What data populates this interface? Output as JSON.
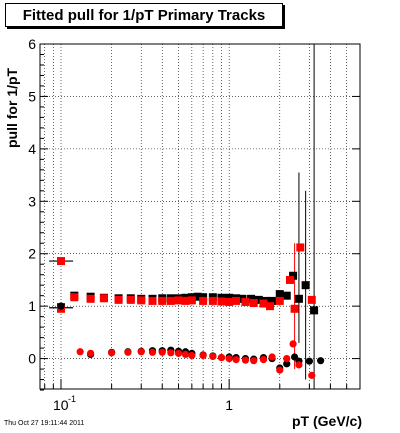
{
  "title": "Fitted pull for 1/pT  Primary Tracks",
  "timestamp": "Thu Oct 27 19:11:44 2011",
  "chart_data": {
    "type": "scatter",
    "title": "Fitted pull for 1/pT  Primary Tracks",
    "xlabel": "pT (GeV/c)",
    "ylabel": "pull for 1/pT",
    "x_scale": "log",
    "xlim": [
      0.075,
      6.0
    ],
    "ylim": [
      -0.58,
      6.0
    ],
    "x_tick_labels": [
      "10^-1",
      "1"
    ],
    "y_ticks": [
      0,
      1,
      2,
      3,
      4,
      5,
      6
    ],
    "grid": true,
    "colors": {
      "black": "#000000",
      "red": "#ff0000"
    },
    "series": [
      {
        "marker": "square",
        "color": "#000000",
        "points": [
          [
            0.1,
            0.98
          ],
          [
            0.12,
            1.2
          ],
          [
            0.15,
            1.18
          ],
          [
            0.18,
            1.16
          ],
          [
            0.22,
            1.15
          ],
          [
            0.26,
            1.15
          ],
          [
            0.3,
            1.14
          ],
          [
            0.35,
            1.14
          ],
          [
            0.4,
            1.15
          ],
          [
            0.45,
            1.15
          ],
          [
            0.5,
            1.15
          ],
          [
            0.55,
            1.16
          ],
          [
            0.6,
            1.17
          ],
          [
            0.65,
            1.18
          ],
          [
            0.7,
            1.17
          ],
          [
            0.8,
            1.17
          ],
          [
            0.9,
            1.16
          ],
          [
            1.0,
            1.16
          ],
          [
            1.1,
            1.15
          ],
          [
            1.2,
            1.14
          ],
          [
            1.35,
            1.14
          ],
          [
            1.5,
            1.12
          ],
          [
            1.65,
            1.1
          ],
          [
            1.8,
            1.1
          ],
          [
            2.0,
            1.23
          ],
          [
            2.2,
            1.2
          ],
          [
            2.4,
            1.58
          ],
          [
            2.6,
            1.14
          ],
          [
            2.85,
            1.4
          ],
          [
            3.2,
            0.92
          ]
        ]
      },
      {
        "marker": "square",
        "color": "#ff0000",
        "points": [
          [
            0.1,
            1.86
          ],
          [
            0.1,
            0.95
          ],
          [
            0.12,
            1.17
          ],
          [
            0.15,
            1.14
          ],
          [
            0.18,
            1.15
          ],
          [
            0.22,
            1.12
          ],
          [
            0.26,
            1.12
          ],
          [
            0.3,
            1.11
          ],
          [
            0.35,
            1.1
          ],
          [
            0.4,
            1.1
          ],
          [
            0.45,
            1.1
          ],
          [
            0.5,
            1.11
          ],
          [
            0.55,
            1.1
          ],
          [
            0.6,
            1.11
          ],
          [
            0.7,
            1.1
          ],
          [
            0.8,
            1.1
          ],
          [
            0.9,
            1.09
          ],
          [
            1.0,
            1.08
          ],
          [
            1.1,
            1.1
          ],
          [
            1.25,
            1.08
          ],
          [
            1.4,
            1.06
          ],
          [
            1.6,
            1.05
          ],
          [
            1.75,
            1.0
          ],
          [
            2.0,
            1.1
          ],
          [
            2.3,
            1.5
          ],
          [
            2.45,
            0.95
          ],
          [
            2.65,
            2.12
          ],
          [
            3.1,
            1.12
          ]
        ]
      },
      {
        "marker": "circle",
        "color": "#000000",
        "points": [
          [
            0.1,
            1.0
          ],
          [
            0.15,
            0.08
          ],
          [
            0.2,
            0.12
          ],
          [
            0.25,
            0.13
          ],
          [
            0.3,
            0.14
          ],
          [
            0.35,
            0.15
          ],
          [
            0.4,
            0.15
          ],
          [
            0.45,
            0.16
          ],
          [
            0.5,
            0.14
          ],
          [
            0.55,
            0.13
          ],
          [
            0.6,
            0.1
          ],
          [
            0.7,
            0.07
          ],
          [
            0.8,
            0.05
          ],
          [
            0.9,
            0.02
          ],
          [
            1.0,
            0.03
          ],
          [
            1.1,
            0.02
          ],
          [
            1.25,
            0.0
          ],
          [
            1.4,
            -0.01
          ],
          [
            1.6,
            0.02
          ],
          [
            1.8,
            0.0
          ],
          [
            2.0,
            -0.18
          ],
          [
            2.2,
            -0.1
          ],
          [
            2.45,
            0.03
          ],
          [
            2.6,
            -0.05
          ],
          [
            3.0,
            -0.05
          ],
          [
            3.5,
            -0.04
          ]
        ]
      },
      {
        "marker": "circle",
        "color": "#ff0000",
        "points": [
          [
            0.13,
            0.13
          ],
          [
            0.15,
            0.1
          ],
          [
            0.2,
            0.11
          ],
          [
            0.25,
            0.12
          ],
          [
            0.3,
            0.13
          ],
          [
            0.35,
            0.12
          ],
          [
            0.4,
            0.12
          ],
          [
            0.45,
            0.11
          ],
          [
            0.5,
            0.1
          ],
          [
            0.55,
            0.08
          ],
          [
            0.6,
            0.06
          ],
          [
            0.7,
            0.06
          ],
          [
            0.8,
            0.04
          ],
          [
            0.9,
            0.02
          ],
          [
            1.0,
            0.0
          ],
          [
            1.1,
            -0.02
          ],
          [
            1.25,
            -0.03
          ],
          [
            1.4,
            -0.04
          ],
          [
            1.6,
            -0.02
          ],
          [
            1.8,
            0.03
          ],
          [
            2.0,
            -0.22
          ],
          [
            2.2,
            0.0
          ],
          [
            2.4,
            0.28
          ],
          [
            2.6,
            -0.12
          ],
          [
            3.1,
            -0.32
          ]
        ]
      }
    ]
  }
}
